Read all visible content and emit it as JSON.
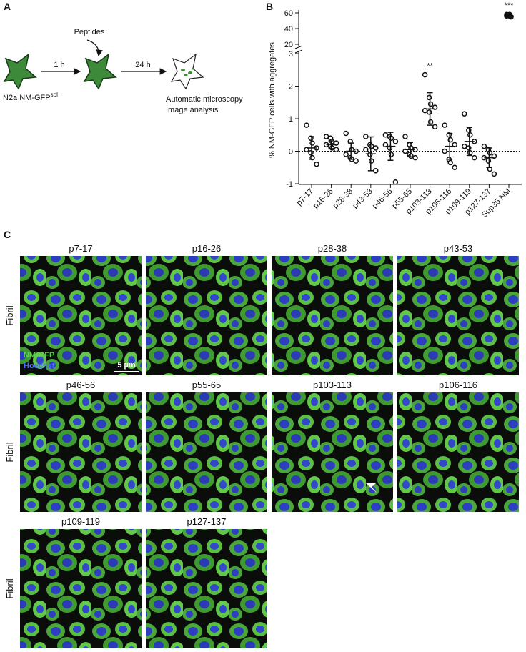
{
  "panel_a": {
    "label": "A",
    "peptides": "Peptides",
    "step1": "1 h",
    "step2": "24 h",
    "cell_line": "N2a NM-GFP",
    "cell_line_sup": "sol",
    "readout": [
      "Automatic microscopy",
      "Image analysis"
    ]
  },
  "chart_data": {
    "type": "dotplot",
    "label": "B",
    "ylabel": "% NM-GFP cells with aggregates",
    "categories": [
      "p7-17",
      "p16-26",
      "p28-38",
      "p43-53",
      "p46-56",
      "p55-65",
      "p103-113",
      "p106-116",
      "p109-119",
      "p127-137",
      "Sup35 NM"
    ],
    "values": [
      [
        0.8,
        0.4,
        0.25,
        0.1,
        0.05,
        -0.05,
        -0.2,
        -0.4
      ],
      [
        0.45,
        0.4,
        0.3,
        0.25,
        0.2,
        0.15,
        0.1,
        0.05
      ],
      [
        0.55,
        0.3,
        0.05,
        0,
        -0.1,
        -0.2,
        -0.25,
        -0.3
      ],
      [
        0.45,
        0.2,
        0.15,
        0.1,
        0.05,
        -0.1,
        -0.3,
        -0.6
      ],
      [
        0.5,
        0.45,
        0.4,
        0.3,
        0.2,
        0.1,
        -0.1,
        -0.95
      ],
      [
        0.45,
        0.2,
        0.1,
        0.05,
        0,
        -0.1,
        -0.15,
        -0.2
      ],
      [
        2.35,
        1.65,
        1.45,
        1.35,
        1.25,
        1.2,
        0.9,
        0.75
      ],
      [
        0.8,
        0.5,
        0.35,
        0.2,
        0,
        -0.25,
        -0.35,
        -0.5
      ],
      [
        1.15,
        0.65,
        0.5,
        0.3,
        0.15,
        0.1,
        -0.05,
        -0.2
      ],
      [
        0.15,
        0.05,
        -0.05,
        -0.15,
        -0.2,
        -0.3,
        -0.55,
        -0.7
      ],
      [
        58,
        57,
        56,
        55,
        56,
        57,
        58,
        55
      ]
    ],
    "means": [
      0.1,
      0.2,
      0,
      -0.08,
      0.15,
      0.05,
      1.3,
      0.15,
      0.3,
      -0.2,
      56
    ],
    "sds": [
      0.35,
      0.12,
      0.25,
      0.52,
      0.43,
      0.22,
      0.5,
      0.4,
      0.43,
      0.3,
      1
    ],
    "ylim": [
      -1,
      3
    ],
    "yticks": [
      -1,
      0,
      1,
      2,
      3
    ],
    "ylim_break": [
      20,
      60
    ],
    "yticks_break": [
      20,
      40,
      60
    ],
    "reference_line": 0,
    "annotations": [
      {
        "text": "**",
        "category": "p103-113"
      },
      {
        "text": "***",
        "category": "Sup35 NM"
      }
    ]
  },
  "panel_c": {
    "label": "C",
    "channels": [
      "NM-GFP",
      "Hoechst"
    ],
    "scale_bar": "5 µm",
    "rows": [
      {
        "label": "Fibril",
        "images": [
          "p7-17",
          "p16-26",
          "p28-38",
          "p43-53"
        ]
      },
      {
        "label": "Fibril",
        "images": [
          "p46-56",
          "p55-65",
          "p103-113",
          "p106-116"
        ]
      },
      {
        "label": "Fibril",
        "images": [
          "p109-119",
          "p127-137"
        ]
      }
    ]
  }
}
